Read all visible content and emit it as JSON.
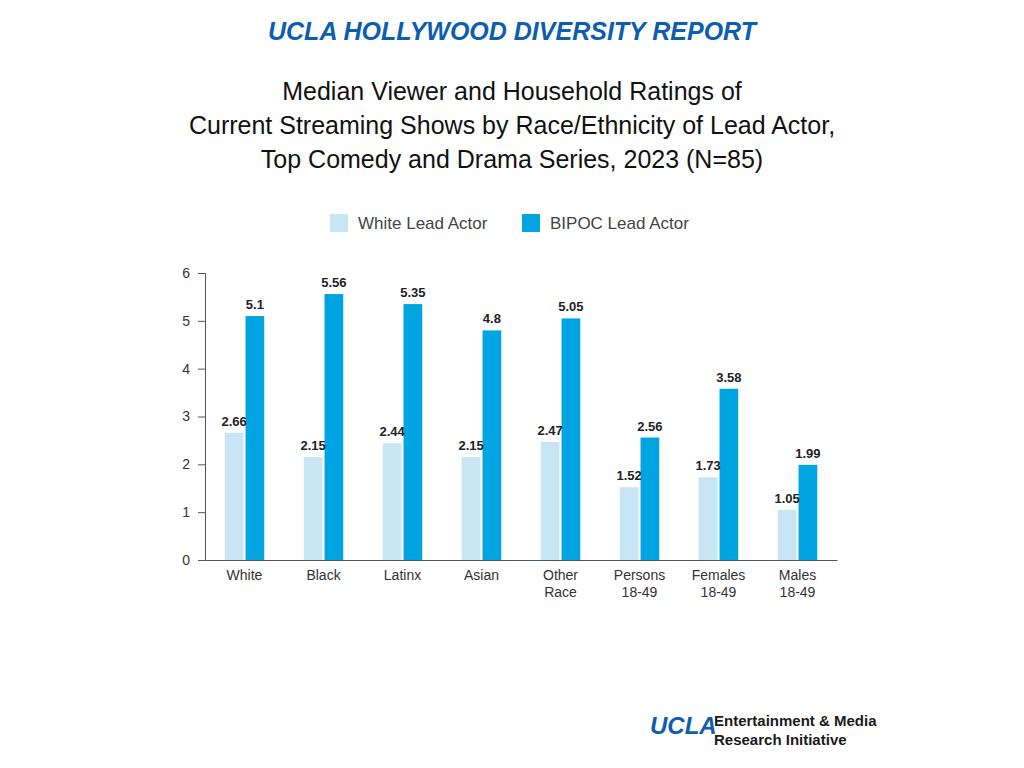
{
  "chart_data": {
    "type": "bar",
    "title": "Median Viewer and Household Ratings of\nCurrent Streaming Shows by Race/Ethnicity of Lead Actor,\nTop Comedy and Drama Series, 2023 (N=85)",
    "annotations": [
      "UCLA HOLLYWOOD DIVERSITY REPORT",
      "UCLA",
      "Entertainment & Media",
      "Research Initiative"
    ],
    "categories": [
      "White",
      "Black",
      "Latinx",
      "Asian",
      "Other Race",
      "Persons 18-49",
      "Females 18-49",
      "Males 18-49"
    ],
    "series": [
      {
        "name": "White Lead Actor",
        "color": "#c8e5f6",
        "values": [
          2.66,
          2.15,
          2.44,
          2.15,
          2.47,
          1.52,
          1.73,
          1.05
        ]
      },
      {
        "name": "BIPOC Lead Actor",
        "color": "#00a4e1",
        "values": [
          5.1,
          5.56,
          5.35,
          4.8,
          5.05,
          2.56,
          3.58,
          1.99
        ]
      }
    ],
    "ylim": [
      0,
      6
    ],
    "yticks": [
      0,
      1,
      2,
      3,
      4,
      5,
      6
    ],
    "grid": false,
    "data_labels": true,
    "legend": "top"
  }
}
